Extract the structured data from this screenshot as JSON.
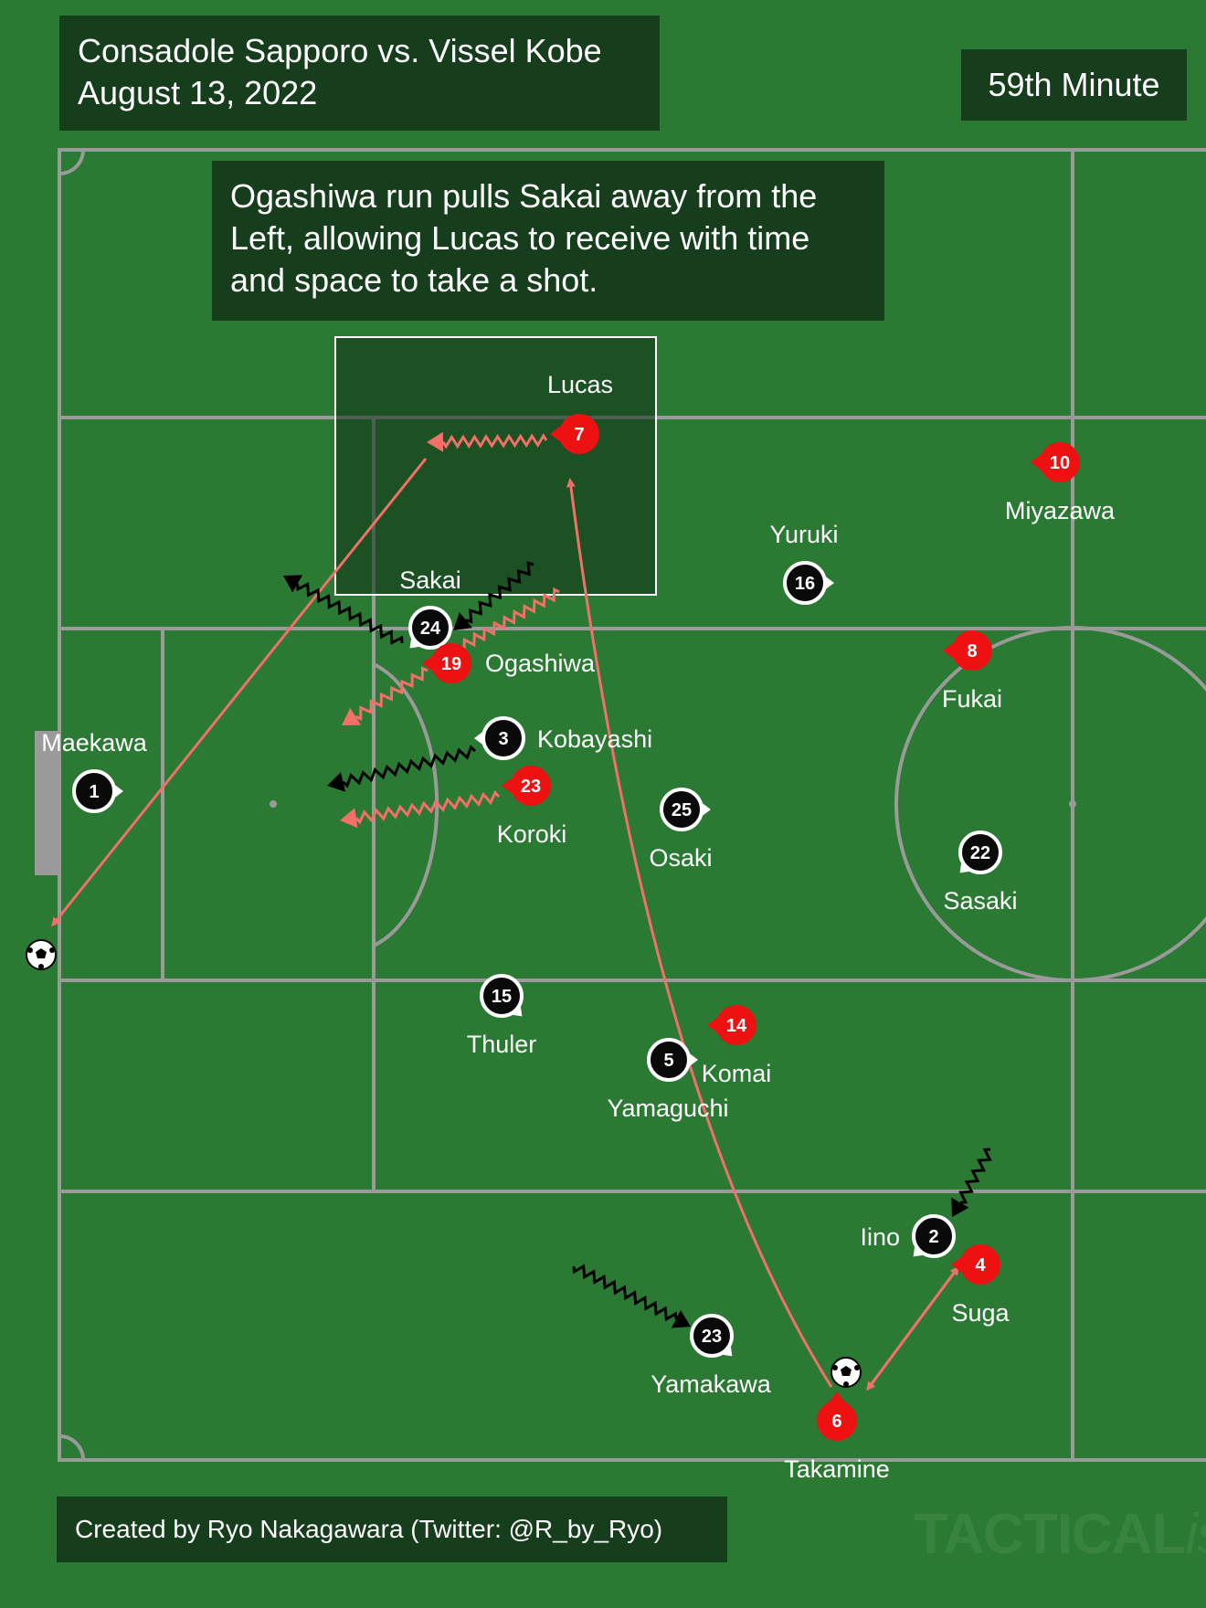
{
  "header": {
    "match_title": "Consadole Sapporo vs. Vissel Kobe",
    "match_date": "August 13, 2022",
    "minute": "59th Minute"
  },
  "caption": "Ogashiwa run pulls Sakai away from the Left, allowing Lucas to receive with time and space to take a shot.",
  "credit": "Created by Ryo Nakagawara (Twitter: @R_by_Ryo)",
  "watermark": {
    "main": "TACTICAL",
    "italic": "ista"
  },
  "colors": {
    "pitch": "#2a7a33",
    "panel": "#163e1c",
    "team_red": "#ee1111",
    "team_black": "#0a0a0a",
    "arrow_red": "#f27068",
    "line": "#9a9a9a"
  },
  "players": [
    {
      "name": "Lucas",
      "number": "7",
      "team": "red"
    },
    {
      "name": "Miyazawa",
      "number": "10",
      "team": "red"
    },
    {
      "name": "Yuruki",
      "number": "16",
      "team": "black"
    },
    {
      "name": "Sakai",
      "number": "24",
      "team": "black"
    },
    {
      "name": "Ogashiwa",
      "number": "19",
      "team": "red"
    },
    {
      "name": "Fukai",
      "number": "8",
      "team": "red"
    },
    {
      "name": "Maekawa",
      "number": "1",
      "team": "black"
    },
    {
      "name": "Kobayashi",
      "number": "3",
      "team": "black"
    },
    {
      "name": "Koroki",
      "number": "23",
      "team": "red"
    },
    {
      "name": "Osaki",
      "number": "25",
      "team": "black"
    },
    {
      "name": "Sasaki",
      "number": "22",
      "team": "black"
    },
    {
      "name": "Thuler",
      "number": "15",
      "team": "black"
    },
    {
      "name": "Komai",
      "number": "14",
      "team": "red"
    },
    {
      "name": "Yamaguchi",
      "number": "5",
      "team": "black"
    },
    {
      "name": "Iino",
      "number": "2",
      "team": "black"
    },
    {
      "name": "Suga",
      "number": "4",
      "team": "red"
    },
    {
      "name": "Yamakawa",
      "number": "23",
      "team": "black"
    },
    {
      "name": "Takamine",
      "number": "6",
      "team": "red"
    }
  ]
}
